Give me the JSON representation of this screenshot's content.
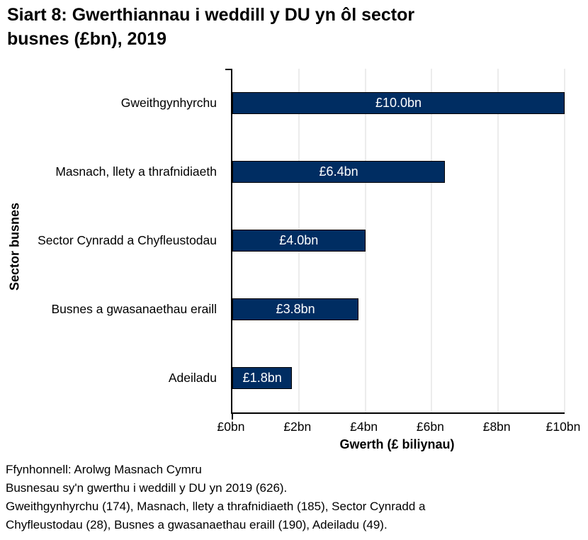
{
  "title": "Siart 8: Gwerthiannau i weddill y DU yn ôl sector\nbusnes (£bn), 2019",
  "chart_data": {
    "type": "bar",
    "orientation": "horizontal",
    "title": "Siart 8: Gwerthiannau i weddill y DU yn ôl sector busnes (£bn), 2019",
    "categories": [
      "Gweithgynhyrchu",
      "Masnach, llety a thrafnidiaeth",
      "Sector Cynradd a Chyfleustodau",
      "Busnes a gwasanaethau eraill",
      "Adeiladu"
    ],
    "values": [
      10.0,
      6.4,
      4.0,
      3.8,
      1.8
    ],
    "bar_labels": [
      "£10.0bn",
      "£6.4bn",
      "£4.0bn",
      "£3.8bn",
      "£1.8bn"
    ],
    "xlabel": "Gwerth (£ biliynau)",
    "ylabel": "Sector busnes",
    "xlim": [
      0,
      10
    ],
    "x_ticks": [
      "£0bn",
      "£2bn",
      "£4bn",
      "£6bn",
      "£8bn",
      "£10bn"
    ],
    "grid": "vertical-only",
    "legend": "none",
    "bar_color": "#002d62",
    "bar_border_color": "#000000",
    "gridline_color": "#d9d9d9",
    "value_label_color": "#ffffff"
  },
  "footer": {
    "lines": [
      "Ffynhonnell: Arolwg Masnach Cymru",
      "Busnesau sy'n gwerthu i weddill y DU yn 2019 (626).",
      "Gweithgynhyrchu (174), Masnach, llety a thrafnidiaeth (185), Sector Cynradd a",
      "Chyfleustodau (28), Busnes a gwasanaethau eraill (190), Adeiladu (49)."
    ]
  }
}
